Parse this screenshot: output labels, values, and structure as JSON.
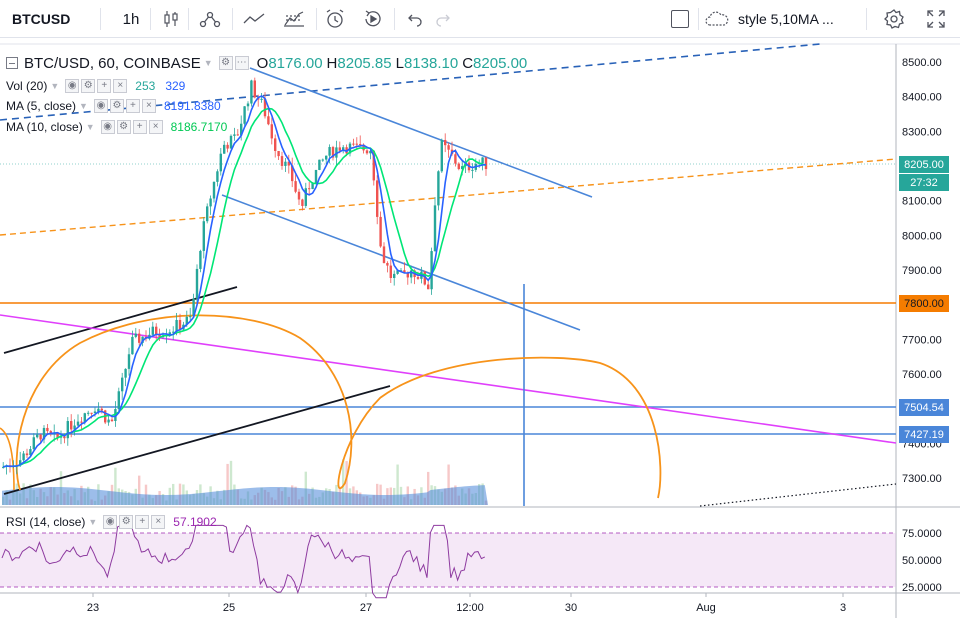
{
  "toolbar": {
    "symbol": "BTCUSD",
    "interval": "1h",
    "style_label": "style 5,10MA ...",
    "icons": [
      "candles-icon",
      "indicators-icon",
      "line-tool-icon",
      "fib-icon",
      "alert-icon",
      "replay-icon",
      "undo-icon",
      "redo-icon",
      "cloud-icon",
      "settings-icon",
      "fullscreen-icon"
    ]
  },
  "legend": {
    "main_title": "BTC/USD, 60, COINBASE",
    "open_label": "O",
    "open": "8176.00",
    "high_label": "H",
    "high": "8205.85",
    "low_label": "L",
    "low": "8138.10",
    "close_label": "C",
    "close": "8205.00",
    "vol_name": "Vol (20)",
    "vol_value": "253",
    "vol_ma": "329",
    "ma5_name": "MA (5, close)",
    "ma5_value": "8191.8380",
    "ma10_name": "MA (10, close)",
    "ma10_value": "8186.7170",
    "rsi_name": "RSI (14, close)",
    "rsi_value": "57.1902"
  },
  "price_axis": {
    "labels": [
      "8500.00",
      "8400.00",
      "8300.00",
      "8200.00",
      "8100.00",
      "8000.00",
      "7900.00",
      "7800.00",
      "7700.00",
      "7600.00",
      "7500.00",
      "7400.00",
      "7300.00"
    ],
    "current_price": "8205.00",
    "countdown": "27:32",
    "tag_7800": "7800.00",
    "tag_7504": "7504.54",
    "tag_7427": "7427.19"
  },
  "rsi_axis": {
    "labels": [
      "75.0000",
      "50.0000",
      "25.0000"
    ]
  },
  "time_axis": {
    "labels": [
      "23",
      "25",
      "27",
      "12:00",
      "30",
      "Aug",
      "3"
    ]
  },
  "colors": {
    "up": "#26a69a",
    "down": "#ef5350",
    "ma5": "#2962ff",
    "ma10": "#00e676",
    "orange": "#f7931a",
    "magenta": "#e040fb",
    "blue_line": "#4a86d9",
    "rsi": "#9c27b0"
  }
}
